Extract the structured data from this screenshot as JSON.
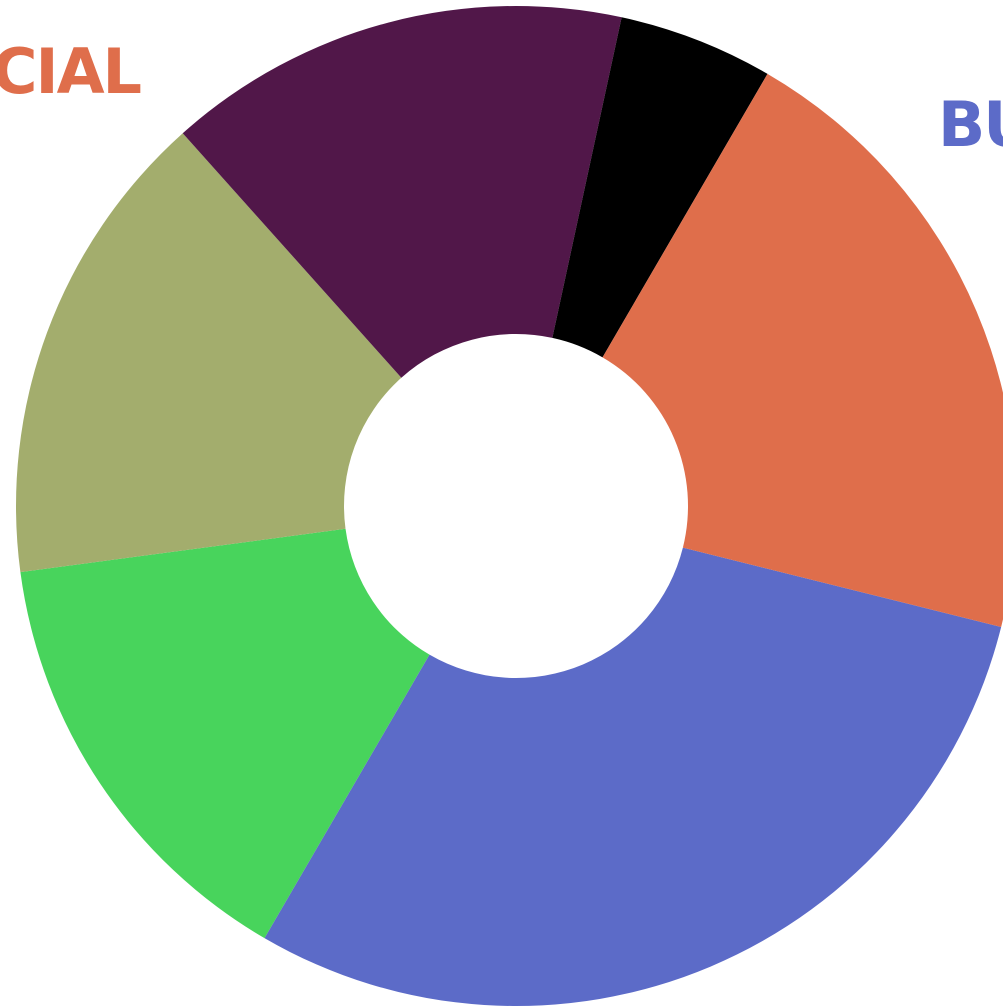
{
  "chart_data": {
    "type": "pie",
    "donut": true,
    "values": [
      29.5,
      14.5,
      15.5,
      15.0,
      5.0,
      20.5
    ],
    "colors": [
      "#5C6BC8",
      "#48D45C",
      "#A3AD6D",
      "#511749",
      "#000000",
      "#DF6E4B"
    ],
    "labels": [
      "BU",
      "",
      "",
      "",
      "",
      "CIAL"
    ],
    "label_colors": [
      "#5C6BC8",
      "",
      "",
      "",
      "",
      "#DF6E4B"
    ]
  }
}
